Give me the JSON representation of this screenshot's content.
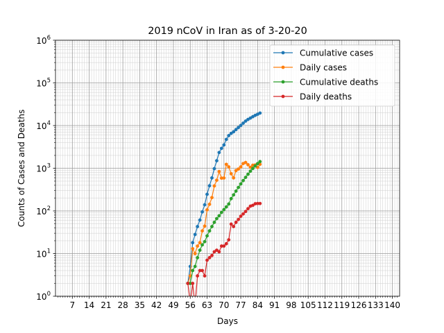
{
  "chart_data": {
    "type": "line",
    "title": "2019 nCoV in Iran as of 3-20-20",
    "xlabel": "Days",
    "ylabel": "Counts of Cases and Deaths",
    "yscale": "log",
    "ylim": [
      1,
      1000000
    ],
    "xlim": [
      0,
      143
    ],
    "x_ticks": [
      7,
      14,
      21,
      28,
      35,
      42,
      49,
      56,
      63,
      70,
      77,
      84,
      91,
      98,
      105,
      112,
      119,
      126,
      133,
      140
    ],
    "x_tick_labels": [
      "7",
      "14",
      "21",
      "28",
      "35",
      "42",
      "49",
      "56",
      "63",
      "70",
      "77",
      "84",
      "91",
      "98",
      "105",
      "112",
      "119",
      "126",
      "133",
      "140"
    ],
    "y_ticks": [
      1,
      10,
      100,
      1000,
      10000,
      100000,
      1000000
    ],
    "y_tick_labels": [
      {
        "base": "10",
        "exp": "0"
      },
      {
        "base": "10",
        "exp": "1"
      },
      {
        "base": "10",
        "exp": "2"
      },
      {
        "base": "10",
        "exp": "3"
      },
      {
        "base": "10",
        "exp": "4"
      },
      {
        "base": "10",
        "exp": "5"
      },
      {
        "base": "10",
        "exp": "6"
      }
    ],
    "grid": "major and minor",
    "legend_position": "top-right",
    "series": [
      {
        "name": "Cumulative cases",
        "color": "#1f77b4",
        "x": [
          55,
          56,
          57,
          58,
          59,
          60,
          61,
          62,
          63,
          64,
          65,
          66,
          67,
          68,
          69,
          70,
          71,
          72,
          73,
          74,
          75,
          76,
          77,
          78,
          79,
          80,
          81,
          82,
          83,
          84,
          85
        ],
        "y": [
          2,
          5,
          18,
          28,
          43,
          61,
          95,
          139,
          245,
          388,
          593,
          978,
          1501,
          2336,
          2922,
          3513,
          4747,
          5823,
          6566,
          7161,
          8042,
          9000,
          10075,
          11364,
          12729,
          13938,
          14991,
          16169,
          17361,
          18407,
          19644
        ]
      },
      {
        "name": "Daily cases",
        "color": "#ff7f0e",
        "x": [
          55,
          56,
          57,
          58,
          59,
          60,
          61,
          62,
          63,
          64,
          65,
          66,
          67,
          68,
          69,
          70,
          71,
          72,
          73,
          74,
          75,
          76,
          77,
          78,
          79,
          80,
          81,
          82,
          83,
          84,
          85
        ],
        "y": [
          2,
          3,
          13,
          10,
          15,
          18,
          34,
          44,
          106,
          143,
          205,
          385,
          523,
          835,
          586,
          591,
          1234,
          1076,
          743,
          595,
          881,
          958,
          1075,
          1289,
          1365,
          1209,
          1053,
          1178,
          1192,
          1046,
          1237
        ]
      },
      {
        "name": "Cumulative deaths",
        "color": "#2ca02c",
        "x": [
          55,
          56,
          57,
          58,
          59,
          60,
          61,
          62,
          63,
          64,
          65,
          66,
          67,
          68,
          69,
          70,
          71,
          72,
          73,
          74,
          75,
          76,
          77,
          78,
          79,
          80,
          81,
          82,
          83,
          84,
          85
        ],
        "y": [
          2,
          2,
          4,
          5,
          8,
          12,
          16,
          19,
          26,
          34,
          43,
          54,
          66,
          77,
          92,
          107,
          124,
          145,
          194,
          237,
          291,
          354,
          429,
          514,
          611,
          724,
          853,
          988,
          1135,
          1284,
          1433
        ]
      },
      {
        "name": "Daily deaths",
        "color": "#d62728",
        "x": [
          55,
          56,
          57,
          58,
          59,
          60,
          61,
          62,
          63,
          64,
          65,
          66,
          67,
          68,
          69,
          70,
          71,
          72,
          73,
          74,
          75,
          76,
          77,
          78,
          79,
          80,
          81,
          82,
          83,
          84,
          85
        ],
        "y": [
          2,
          0.7,
          2,
          0.6,
          3,
          4,
          4,
          3,
          7,
          8,
          9,
          11,
          12,
          11,
          15,
          15,
          17,
          21,
          49,
          43,
          54,
          63,
          75,
          85,
          97,
          113,
          129,
          135,
          147,
          149,
          149
        ]
      }
    ]
  }
}
